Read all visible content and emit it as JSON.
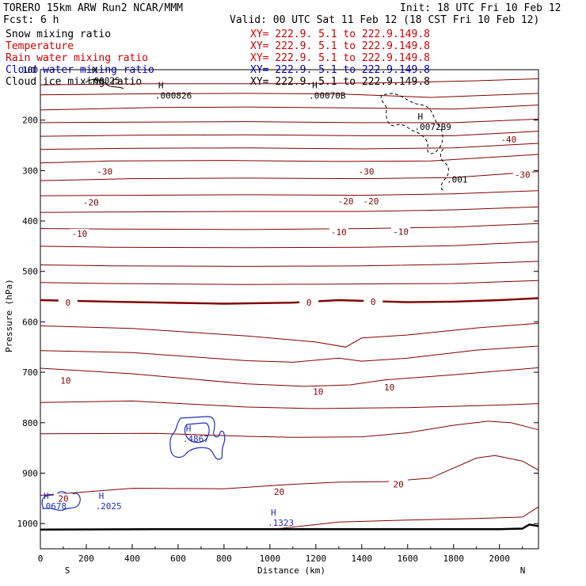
{
  "header": {
    "title": "TORERO  15km ARW   Run2    NCAR/MMM",
    "init": "Init: 18 UTC Fri 10 Feb 12",
    "fcst": "Fcst:     6 h",
    "valid": "Valid: 00 UTC Sat 11 Feb 12 (18 CST Fri 10 Feb 12)"
  },
  "legend": [
    {
      "name": "Snow mixing ratio",
      "xy": "XY= 222.9.  5.1 to 222.9.149.8",
      "color": "#000000"
    },
    {
      "name": "Temperature",
      "xy": "XY= 222.9.  5.1 to 222.9.149.8",
      "color": "#cc0000"
    },
    {
      "name": "Rain water mixing ratio",
      "xy": "XY= 222.9.  5.1 to 222.9.149.8",
      "color": "#cc0000"
    },
    {
      "name": "Cloud water mixing ratio",
      "xy": "XY= 222.9.  5.1 to 222.9.149.8",
      "color": "#0000cc"
    },
    {
      "name": "Cloud ice mixing ratio",
      "xy": "XY= 222.9.  5.1 to 222.9.149.8",
      "color": "#000000"
    }
  ],
  "colors": {
    "temperature": "#800000",
    "cloud_water": "#1f2fbf",
    "snow": "#000000",
    "ground": "#000000"
  },
  "chart_data": {
    "type": "contour",
    "xlabel": "Distance (km)",
    "ylabel": "Pressure (hPa)",
    "xlim": [
      0,
      2170
    ],
    "ylim": [
      1050,
      100
    ],
    "xticks": [
      0,
      200,
      400,
      600,
      800,
      1000,
      1200,
      1400,
      1600,
      1800,
      2000
    ],
    "yticks": [
      100,
      200,
      300,
      400,
      500,
      600,
      700,
      800,
      900,
      1000
    ],
    "x_end_labels": {
      "left": "S",
      "right": "N"
    },
    "temperature_contours": [
      {
        "level": -40,
        "label": "-40",
        "points": [
          [
            0,
            130
          ],
          [
            500,
            128
          ],
          [
            1000,
            128
          ],
          [
            1500,
            126
          ],
          [
            1900,
            122
          ],
          [
            2170,
            118
          ]
        ]
      },
      {
        "level": -40,
        "label": "-40",
        "points": [
          [
            0,
            150
          ],
          [
            400,
            148
          ],
          [
            900,
            147
          ],
          [
            1300,
            148
          ],
          [
            1700,
            155
          ],
          [
            2000,
            150
          ],
          [
            2170,
            147
          ]
        ]
      },
      {
        "level": -40,
        "label": "-40",
        "points": [
          [
            0,
            180
          ],
          [
            500,
            175
          ],
          [
            900,
            174
          ],
          [
            1400,
            176
          ],
          [
            1800,
            178
          ],
          [
            2170,
            170
          ]
        ]
      },
      {
        "level": -40,
        "label": "-40",
        "points": [
          [
            0,
            205
          ],
          [
            400,
            204
          ],
          [
            900,
            203
          ],
          [
            1400,
            205
          ],
          [
            1800,
            205
          ],
          [
            2170,
            198
          ]
        ]
      },
      {
        "level": -40,
        "label": "-40",
        "points": [
          [
            0,
            232
          ],
          [
            400,
            230
          ],
          [
            900,
            229
          ],
          [
            1400,
            231
          ],
          [
            1800,
            231
          ],
          [
            2170,
            222
          ]
        ]
      },
      {
        "level": -40,
        "label": "-40",
        "points": [
          [
            0,
            258
          ],
          [
            400,
            256
          ],
          [
            900,
            255
          ],
          [
            1400,
            257
          ],
          [
            1800,
            255
          ],
          [
            2170,
            246
          ]
        ]
      },
      {
        "level": -30,
        "label": "-30",
        "points": [
          [
            0,
            285
          ],
          [
            300,
            281
          ],
          [
            800,
            280
          ],
          [
            1300,
            282
          ],
          [
            1700,
            281
          ],
          [
            2170,
            268
          ]
        ]
      },
      {
        "level": -30,
        "label": "-30",
        "points": [
          [
            0,
            320
          ],
          [
            400,
            316
          ],
          [
            900,
            315
          ],
          [
            1400,
            316
          ],
          [
            1800,
            314
          ],
          [
            2170,
            302
          ]
        ]
      },
      {
        "level": -20,
        "label": "-20",
        "points": [
          [
            0,
            350
          ],
          [
            400,
            349
          ],
          [
            900,
            348
          ],
          [
            1400,
            349
          ],
          [
            1800,
            346
          ],
          [
            2170,
            340
          ]
        ]
      },
      {
        "level": -20,
        "label": "-20",
        "points": [
          [
            0,
            383
          ],
          [
            400,
            382
          ],
          [
            900,
            381
          ],
          [
            1400,
            381
          ],
          [
            1800,
            378
          ],
          [
            2170,
            372
          ]
        ]
      },
      {
        "level": -10,
        "label": "-10",
        "points": [
          [
            0,
            415
          ],
          [
            300,
            416
          ],
          [
            900,
            417
          ],
          [
            1400,
            415
          ],
          [
            1800,
            412
          ],
          [
            2170,
            405
          ]
        ]
      },
      {
        "level": -10,
        "label": "-10",
        "points": [
          [
            0,
            450
          ],
          [
            300,
            452
          ],
          [
            900,
            453
          ],
          [
            1400,
            452
          ],
          [
            1800,
            449
          ],
          [
            2170,
            441
          ]
        ]
      },
      {
        "level": -10,
        "label": "-10",
        "points": [
          [
            0,
            487
          ],
          [
            300,
            489
          ],
          [
            900,
            490
          ],
          [
            1400,
            489
          ],
          [
            1800,
            486
          ],
          [
            2170,
            480
          ]
        ]
      },
      {
        "level": 0,
        "label": "0",
        "points": [
          [
            0,
            522
          ],
          [
            300,
            524
          ],
          [
            900,
            526
          ],
          [
            1300,
            525
          ],
          [
            1800,
            524
          ],
          [
            2170,
            518
          ]
        ]
      },
      {
        "level": 0,
        "label": "0",
        "points": [
          [
            0,
            557
          ],
          [
            300,
            560
          ],
          [
            800,
            564
          ],
          [
            1100,
            562
          ],
          [
            1300,
            557
          ],
          [
            1600,
            561
          ],
          [
            1800,
            560
          ],
          [
            2000,
            557
          ],
          [
            2170,
            553
          ]
        ]
      },
      {
        "level": 10,
        "label": "10",
        "points": [
          [
            0,
            608
          ],
          [
            400,
            613
          ],
          [
            900,
            628
          ],
          [
            1200,
            640
          ],
          [
            1330,
            650
          ],
          [
            1400,
            632
          ],
          [
            1600,
            626
          ],
          [
            1900,
            612
          ],
          [
            2170,
            603
          ]
        ]
      },
      {
        "level": 10,
        "label": "10",
        "points": [
          [
            0,
            657
          ],
          [
            400,
            661
          ],
          [
            900,
            677
          ],
          [
            1100,
            680
          ],
          [
            1300,
            672
          ],
          [
            1400,
            678
          ],
          [
            1600,
            672
          ],
          [
            1900,
            656
          ],
          [
            2170,
            648
          ]
        ]
      },
      {
        "level": 10,
        "label": "10",
        "points": [
          [
            0,
            692
          ],
          [
            400,
            703
          ],
          [
            900,
            723
          ],
          [
            1150,
            728
          ],
          [
            1350,
            725
          ],
          [
            1500,
            715
          ],
          [
            1800,
            705
          ],
          [
            2170,
            691
          ]
        ]
      },
      {
        "level": 10,
        "label": "10",
        "points": [
          [
            0,
            760
          ],
          [
            400,
            757
          ],
          [
            900,
            769
          ],
          [
            1200,
            772
          ],
          [
            1400,
            771
          ],
          [
            1600,
            770
          ],
          [
            2000,
            765
          ],
          [
            2170,
            762
          ]
        ]
      },
      {
        "level": 20,
        "label": "20",
        "points": [
          [
            0,
            822
          ],
          [
            500,
            821
          ],
          [
            900,
            827
          ],
          [
            1100,
            829
          ],
          [
            1400,
            828
          ],
          [
            1600,
            820
          ],
          [
            1800,
            805
          ],
          [
            1950,
            797
          ],
          [
            2050,
            800
          ],
          [
            2170,
            814
          ]
        ]
      },
      {
        "level": 20,
        "label": "20",
        "points": [
          [
            0,
            944
          ],
          [
            400,
            930
          ],
          [
            800,
            931
          ],
          [
            1100,
            922
          ],
          [
            1300,
            918
          ],
          [
            1500,
            917
          ],
          [
            1700,
            910
          ],
          [
            1900,
            870
          ],
          [
            1980,
            865
          ],
          [
            2100,
            876
          ],
          [
            2170,
            894
          ]
        ]
      },
      {
        "level": 20,
        "label": "20",
        "points": [
          [
            1040,
            1010
          ],
          [
            1300,
            997
          ],
          [
            1600,
            993
          ],
          [
            1900,
            990
          ],
          [
            2100,
            987
          ],
          [
            2170,
            967
          ]
        ]
      }
    ],
    "contour_labels": [
      {
        "text": "-40",
        "x": 2040,
        "y": 238
      },
      {
        "text": "-30",
        "x": 2100,
        "y": 308
      },
      {
        "text": "-30",
        "x": 280,
        "y": 302
      },
      {
        "text": "-30",
        "x": 1420,
        "y": 302
      },
      {
        "text": "-20",
        "x": 220,
        "y": 363
      },
      {
        "text": "-20",
        "x": 1330,
        "y": 361
      },
      {
        "text": "-20",
        "x": 1440,
        "y": 361
      },
      {
        "text": "-10",
        "x": 170,
        "y": 425
      },
      {
        "text": "-10",
        "x": 1300,
        "y": 422
      },
      {
        "text": "-10",
        "x": 1570,
        "y": 421
      },
      {
        "text": "0",
        "x": 120,
        "y": 562
      },
      {
        "text": "0",
        "x": 1170,
        "y": 562
      },
      {
        "text": "0",
        "x": 1450,
        "y": 560
      },
      {
        "text": "10",
        "x": 110,
        "y": 716
      },
      {
        "text": "10",
        "x": 1210,
        "y": 738
      },
      {
        "text": "10",
        "x": 1520,
        "y": 730
      },
      {
        "text": "20",
        "x": 1040,
        "y": 937
      },
      {
        "text": "20",
        "x": 1560,
        "y": 922
      },
      {
        "text": "20",
        "x": 100,
        "y": 950
      }
    ],
    "max_markers": [
      {
        "label": "H",
        "value": ".000826",
        "x": 500,
        "y": 143,
        "color": "#000000"
      },
      {
        "label": "H",
        "value": ".00070B",
        "x": 1170,
        "y": 143,
        "color": "#000000"
      },
      {
        "label": "H",
        "value": ".0072B9",
        "x": 1630,
        "y": 205,
        "color": "#000000"
      },
      {
        "label": "",
        "value": ".001",
        "x": 1770,
        "y": 310,
        "color": "#000000"
      },
      {
        "label": "H",
        "value": ".4867",
        "x": 620,
        "y": 824,
        "color": "#1f2fbf"
      },
      {
        "label": "H",
        "value": ".0678",
        "x": 0,
        "y": 957,
        "color": "#1f2fbf"
      },
      {
        "label": "H",
        "value": ".2025",
        "x": 240,
        "y": 957,
        "color": "#1f2fbf"
      },
      {
        "label": "H",
        "value": ".1323",
        "x": 990,
        "y": 990,
        "color": "#1f2fbf"
      },
      {
        "label": "H",
        "value": ".00025",
        "x": 210,
        "y": 113,
        "color": "#000000"
      }
    ],
    "ground_line": [
      [
        0,
        1012
      ],
      [
        500,
        1011
      ],
      [
        1000,
        1011
      ],
      [
        1500,
        1011
      ],
      [
        2000,
        1011
      ],
      [
        2100,
        1010
      ],
      [
        2130,
        1002
      ],
      [
        2170,
        1005
      ]
    ]
  }
}
